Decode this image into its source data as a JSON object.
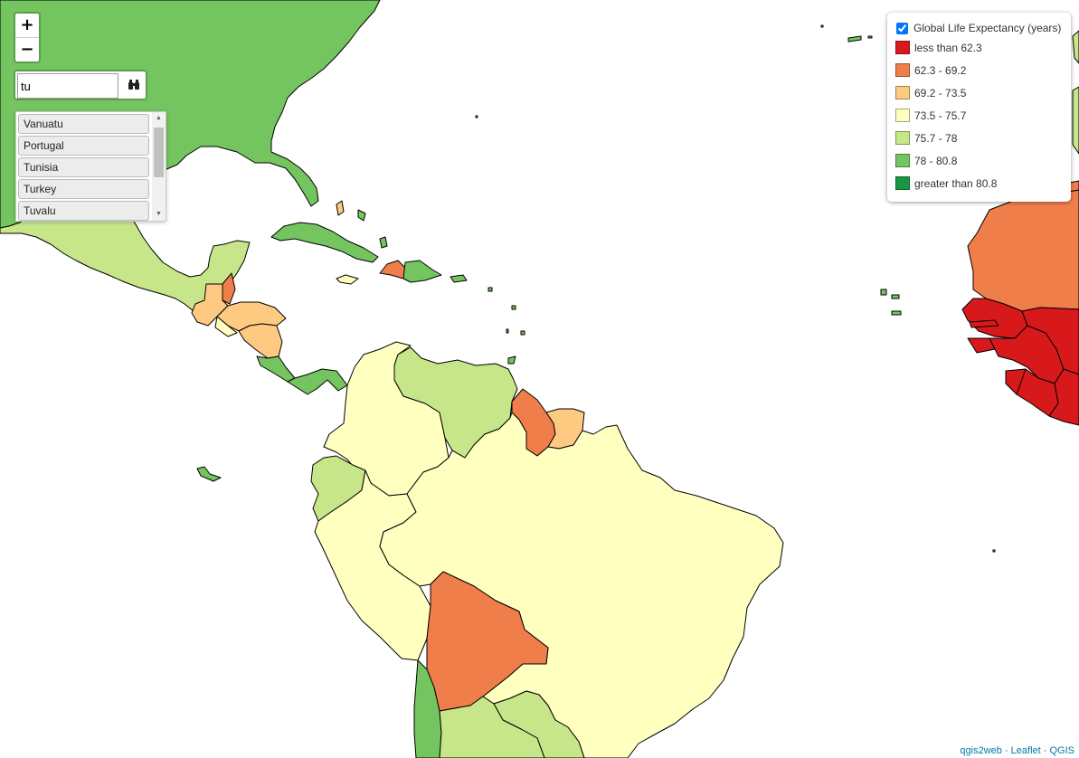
{
  "map": {
    "colors": {
      "class1": "#d7191c",
      "class2": "#ef7e4a",
      "class3": "#fec980",
      "class4": "#ffffc0",
      "class5": "#c7e689",
      "class6": "#74c55f",
      "class7": "#1a9641"
    }
  },
  "zoom": {
    "in_label": "+",
    "out_label": "−"
  },
  "search": {
    "value": "tu",
    "button_icon": "binoculars-icon",
    "results": [
      "Vanuatu",
      "Portugal",
      "Tunisia",
      "Turkey",
      "Tuvalu"
    ]
  },
  "legend": {
    "layer_title": "Global Life Expectancy (years)",
    "layer_checked": true,
    "classes": [
      {
        "label": "less than 62.3",
        "color": "#d7191c"
      },
      {
        "label": "62.3 - 69.2",
        "color": "#ef7e4a"
      },
      {
        "label": "69.2 - 73.5",
        "color": "#fec980"
      },
      {
        "label": "73.5 - 75.7",
        "color": "#ffffc0"
      },
      {
        "label": "75.7 - 78",
        "color": "#c7e689"
      },
      {
        "label": "78 - 80.8",
        "color": "#74c55f"
      },
      {
        "label": "greater than 80.8",
        "color": "#1a9641"
      }
    ]
  },
  "attribution": {
    "link1": "qgis2web",
    "sep1": " · ",
    "link2": "Leaflet",
    "sep2": " · ",
    "link3": "QGIS"
  }
}
